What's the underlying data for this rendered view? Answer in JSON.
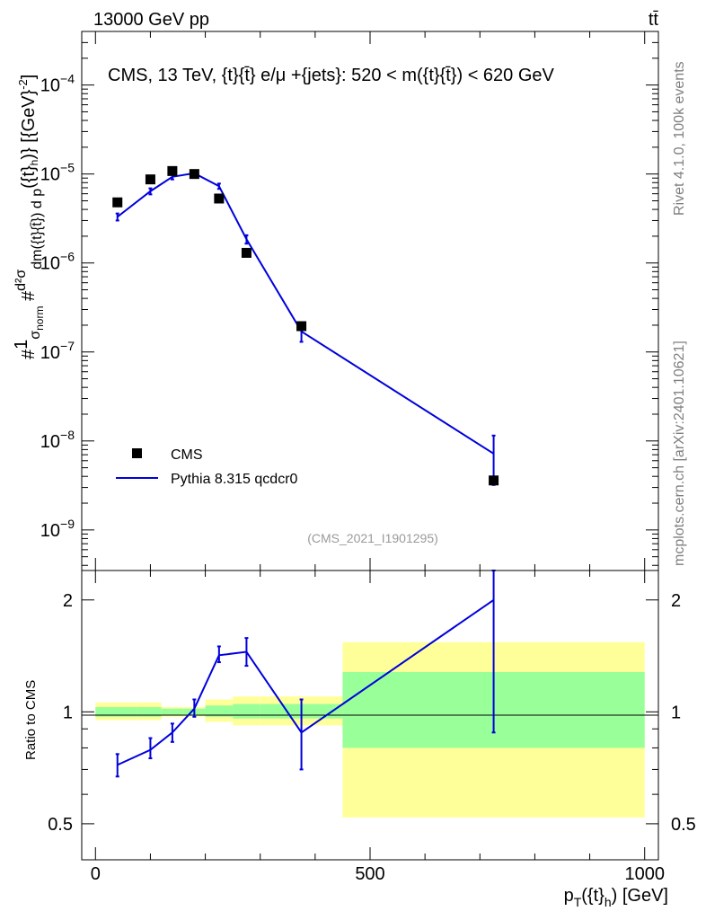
{
  "header": {
    "left": "13000 GeV pp",
    "right": "tt̄"
  },
  "side_text": {
    "rivet": "Rivet 4.1.0,  100k events",
    "mcplots": "mcplots.cern.ch [arXiv:2401.10621]"
  },
  "chart_data": {
    "type": "scatter",
    "title": "CMS, 13 TeV, {t}{t̄} e/μ +{jets}: 520 < m({t}{t̄}) < 620 GeV",
    "watermark": "(CMS_2021_I1901295)",
    "xlabel": "p_T({t}_h) [GeV]",
    "ylabel": "#1/σ_norm # d²σ/dm({t}{t̄}) d p_T({t}_h)} [{GeV}^-2]",
    "xlim": [
      -25,
      1025
    ],
    "ylim": [
      3.5e-10,
      0.0004
    ],
    "yscale": "log",
    "x_ticks": [
      0,
      500,
      1000
    ],
    "y_ticks": [
      {
        "value": 1e-09,
        "label": "10",
        "exp": "−9"
      },
      {
        "value": 1e-08,
        "label": "10",
        "exp": "−8"
      },
      {
        "value": 1e-07,
        "label": "10",
        "exp": "−7"
      },
      {
        "value": 1e-06,
        "label": "10",
        "exp": "−6"
      },
      {
        "value": 1e-05,
        "label": "10",
        "exp": "−5"
      },
      {
        "value": 0.0001,
        "label": "10",
        "exp": "−4"
      }
    ],
    "legend": {
      "position": "bottom-left",
      "data_label": "CMS",
      "mc_label": "Pythia 8.315 qcdcr0"
    },
    "series": [
      {
        "name": "CMS",
        "style": "markers",
        "color": "#000000",
        "x": [
          40,
          100,
          140,
          180,
          225,
          275,
          375,
          725
        ],
        "y": [
          4.8e-06,
          8.7e-06,
          1.08e-05,
          1e-05,
          5.3e-06,
          1.3e-06,
          1.95e-07,
          3.6e-09
        ],
        "bins": [
          [
            0,
            75
          ],
          [
            75,
            120
          ],
          [
            120,
            160
          ],
          [
            160,
            200
          ],
          [
            200,
            250
          ],
          [
            250,
            300
          ],
          [
            300,
            450
          ],
          [
            450,
            1000
          ]
        ]
      },
      {
        "name": "Pythia 8.315 qcdcr0",
        "style": "line",
        "color": "#0000dd",
        "x": [
          40,
          100,
          140,
          180,
          225,
          275,
          375,
          725
        ],
        "y": [
          3.3e-06,
          6.4e-06,
          9.3e-06,
          1.02e-05,
          7.3e-06,
          1.85e-06,
          1.7e-07,
          7.2e-09
        ],
        "yerr_lo": [
          3e-06,
          5.9e-06,
          8.7e-06,
          9.6e-06,
          6.8e-06,
          1.65e-06,
          1.3e-07,
          3.2e-09
        ],
        "yerr_hi": [
          3.6e-06,
          6.9e-06,
          9.9e-06,
          1.08e-05,
          7.8e-06,
          2.05e-06,
          2.1e-07,
          1.15e-08
        ]
      }
    ],
    "ratio": {
      "ylabel": "Ratio to CMS",
      "ylim": [
        0.4,
        2.4
      ],
      "y_ticks": [
        0.5,
        1,
        2
      ],
      "x": [
        40,
        100,
        140,
        180,
        225,
        275,
        375,
        725
      ],
      "values": [
        0.72,
        0.79,
        0.88,
        1.02,
        1.42,
        1.45,
        0.88,
        2.0
      ],
      "err_lo": [
        0.67,
        0.75,
        0.83,
        0.97,
        1.36,
        1.33,
        0.7,
        0.88
      ],
      "err_hi": [
        0.77,
        0.85,
        0.93,
        1.08,
        1.5,
        1.58,
        1.08,
        2.4
      ],
      "band_stat": [
        [
          0.97,
          1.03
        ],
        [
          0.97,
          1.03
        ],
        [
          0.98,
          1.02
        ],
        [
          0.98,
          1.02
        ],
        [
          0.97,
          1.04
        ],
        [
          0.96,
          1.05
        ],
        [
          0.96,
          1.05
        ],
        [
          0.8,
          1.28
        ]
      ],
      "band_total": [
        [
          0.95,
          1.06
        ],
        [
          0.95,
          1.06
        ],
        [
          0.97,
          1.03
        ],
        [
          0.97,
          1.03
        ],
        [
          0.94,
          1.08
        ],
        [
          0.92,
          1.1
        ],
        [
          0.92,
          1.1
        ],
        [
          0.52,
          1.54
        ]
      ]
    }
  }
}
